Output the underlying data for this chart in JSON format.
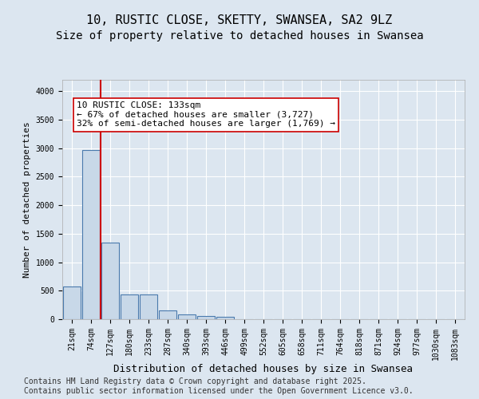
{
  "title": "10, RUSTIC CLOSE, SKETTY, SWANSEA, SA2 9LZ",
  "subtitle": "Size of property relative to detached houses in Swansea",
  "xlabel": "Distribution of detached houses by size in Swansea",
  "ylabel": "Number of detached properties",
  "bar_values": [
    580,
    2970,
    1340,
    430,
    430,
    155,
    80,
    55,
    45,
    0,
    0,
    0,
    0,
    0,
    0,
    0,
    0,
    0,
    0,
    0,
    0
  ],
  "bar_labels": [
    "21sqm",
    "74sqm",
    "127sqm",
    "180sqm",
    "233sqm",
    "287sqm",
    "340sqm",
    "393sqm",
    "446sqm",
    "499sqm",
    "552sqm",
    "605sqm",
    "658sqm",
    "711sqm",
    "764sqm",
    "818sqm",
    "871sqm",
    "924sqm",
    "977sqm",
    "1030sqm",
    "1083sqm"
  ],
  "bar_color": "#c8d8e8",
  "bar_edge_color": "#4a7aad",
  "bar_edge_width": 0.8,
  "vline_x_pos": 1.5,
  "vline_color": "#cc0000",
  "vline_linewidth": 1.5,
  "annotation_text": "10 RUSTIC CLOSE: 133sqm\n← 67% of detached houses are smaller (3,727)\n32% of semi-detached houses are larger (1,769) →",
  "annotation_box_color": "#ffffff",
  "annotation_box_edge": "#cc0000",
  "ylim": [
    0,
    4200
  ],
  "yticks": [
    0,
    500,
    1000,
    1500,
    2000,
    2500,
    3000,
    3500,
    4000
  ],
  "background_color": "#dce6f0",
  "plot_bg_color": "#dce6f0",
  "grid_color": "#ffffff",
  "footer_text": "Contains HM Land Registry data © Crown copyright and database right 2025.\nContains public sector information licensed under the Open Government Licence v3.0.",
  "title_fontsize": 11,
  "subtitle_fontsize": 10,
  "xlabel_fontsize": 9,
  "ylabel_fontsize": 8,
  "tick_fontsize": 7,
  "annotation_fontsize": 8,
  "footer_fontsize": 7
}
